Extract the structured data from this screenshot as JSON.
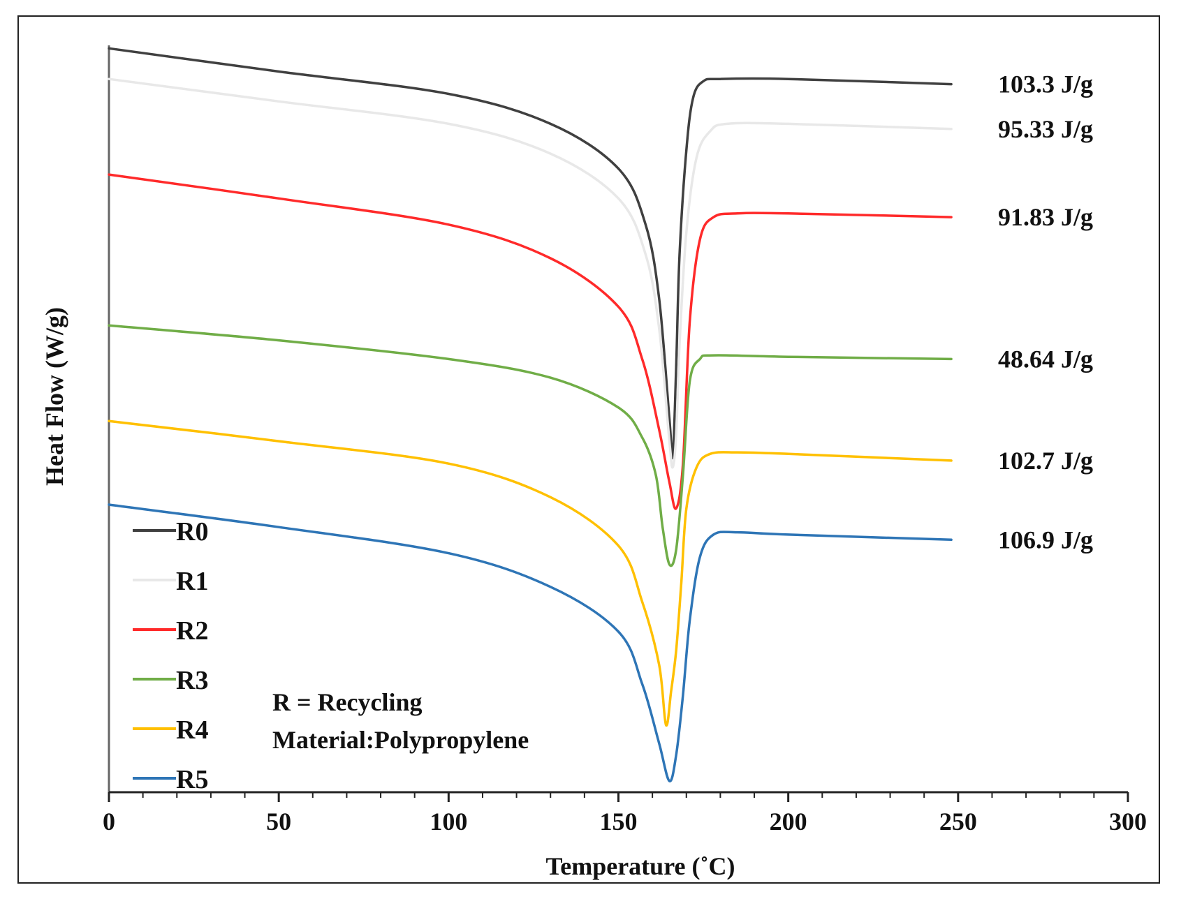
{
  "chart_data": {
    "type": "line",
    "title": "",
    "xlabel": "Temperature (˚C)",
    "ylabel": "Heat Flow (W/g)",
    "xlim": [
      0,
      300
    ],
    "x_ticks": [
      0,
      50,
      100,
      150,
      200,
      250,
      300
    ],
    "x_tick_labels": [
      "0",
      "50",
      "100",
      "150",
      "200",
      "250",
      "300"
    ],
    "ylim": [
      0,
      100
    ],
    "y_ticks_shown": false,
    "grid": false,
    "legend_position": "bottom-left",
    "series": [
      {
        "name": "R0",
        "color": "#404040",
        "enthalpy_label": "103.3 J/g",
        "x": [
          0,
          50,
          100,
          130,
          150,
          158,
          162,
          165,
          166,
          167,
          168,
          170,
          172,
          175,
          180,
          200,
          248
        ],
        "y": [
          99.6,
          96.5,
          93.5,
          89.5,
          83.5,
          76,
          66,
          50,
          45,
          57,
          72,
          86,
          93,
          95.2,
          95.5,
          95.5,
          94.8
        ]
      },
      {
        "name": "R1",
        "color": "#E8E8E8",
        "enthalpy_label": "95.33 J/g",
        "x": [
          0,
          50,
          100,
          130,
          150,
          158,
          162,
          165,
          166,
          167,
          168,
          170,
          173,
          177,
          182,
          200,
          248
        ],
        "y": [
          95.5,
          92.5,
          89.5,
          85.5,
          79.5,
          72,
          62,
          47,
          43.5,
          48,
          60,
          75,
          85,
          88.5,
          89.5,
          89.5,
          88.8
        ]
      },
      {
        "name": "R2",
        "color": "#FF2A2A",
        "enthalpy_label": "91.83 J/g",
        "x": [
          0,
          50,
          100,
          130,
          150,
          157,
          162,
          165,
          167,
          169,
          171,
          174,
          178,
          185,
          200,
          248
        ],
        "y": [
          82.7,
          79.5,
          76,
          71.5,
          65,
          58,
          48.5,
          41.5,
          38,
          44,
          63,
          74,
          77,
          77.5,
          77.5,
          77
        ]
      },
      {
        "name": "R3",
        "color": "#70AD47",
        "enthalpy_label": "48.64 J/g",
        "x": [
          0,
          50,
          100,
          130,
          150,
          157,
          161,
          163,
          165,
          167,
          169,
          171,
          174,
          178,
          200,
          248
        ],
        "y": [
          62.5,
          60.5,
          58,
          55.5,
          51.5,
          47.5,
          42.5,
          35.5,
          30.5,
          32.5,
          42.5,
          55,
          58,
          58.5,
          58.3,
          58
        ]
      },
      {
        "name": "R4",
        "color": "#FFC000",
        "enthalpy_label": "102.7 J/g",
        "x": [
          0,
          50,
          100,
          130,
          150,
          157,
          162,
          164,
          165.5,
          167,
          168.5,
          170,
          173,
          177,
          185,
          200,
          248
        ],
        "y": [
          49.7,
          47,
          44,
          39.5,
          33,
          25.5,
          17,
          9,
          13.5,
          19,
          28,
          38,
          43.5,
          45.3,
          45.5,
          45.3,
          44.4
        ]
      },
      {
        "name": "R5",
        "color": "#2E75B6",
        "enthalpy_label": "106.9 J/g",
        "x": [
          0,
          50,
          100,
          130,
          150,
          157,
          162,
          165,
          167,
          169,
          171,
          174,
          178,
          185,
          200,
          248
        ],
        "y": [
          38.5,
          35.5,
          32,
          27.5,
          21.5,
          14.5,
          6.5,
          1.5,
          5,
          13,
          23,
          31.5,
          34.5,
          34.8,
          34.5,
          33.8
        ]
      }
    ],
    "annotations": [
      "R = Recycling",
      "Material:Polypropylene"
    ]
  }
}
